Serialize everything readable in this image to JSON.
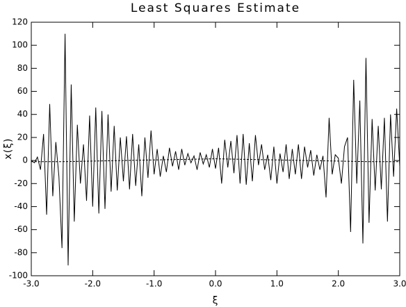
{
  "chart_data": {
    "type": "line",
    "title": "Least Squares Estimate",
    "xlabel": "ξ",
    "ylabel": "x(ξ)",
    "xlim": [
      -3,
      3
    ],
    "ylim": [
      -100,
      120
    ],
    "xticks": [
      {
        "value": -3,
        "label": "-3.0"
      },
      {
        "value": -2,
        "label": "-2.0"
      },
      {
        "value": -1,
        "label": "-1.0"
      },
      {
        "value": 0,
        "label": "0.0"
      },
      {
        "value": 1,
        "label": "1.0"
      },
      {
        "value": 2,
        "label": "2.0"
      },
      {
        "value": 3,
        "label": "3.0"
      }
    ],
    "yticks": [
      -100,
      -80,
      -60,
      -40,
      -20,
      0,
      20,
      40,
      60,
      80,
      100,
      120
    ],
    "series": [
      {
        "color": "#000000",
        "dashed": false,
        "x": [
          -3.0,
          -2.95,
          -2.9,
          -2.85,
          -2.8,
          -2.75,
          -2.7,
          -2.65,
          -2.6,
          -2.55,
          -2.5,
          -2.45,
          -2.4,
          -2.35,
          -2.3,
          -2.25,
          -2.2,
          -2.15,
          -2.1,
          -2.05,
          -2.0,
          -1.95,
          -1.9,
          -1.85,
          -1.8,
          -1.75,
          -1.7,
          -1.65,
          -1.6,
          -1.55,
          -1.5,
          -1.45,
          -1.4,
          -1.35,
          -1.3,
          -1.25,
          -1.2,
          -1.15,
          -1.1,
          -1.05,
          -1.0,
          -0.95,
          -0.9,
          -0.85,
          -0.8,
          -0.75,
          -0.7,
          -0.65,
          -0.6,
          -0.55,
          -0.5,
          -0.45,
          -0.4,
          -0.35,
          -0.3,
          -0.25,
          -0.2,
          -0.15,
          -0.1,
          -0.05,
          0.0,
          0.05,
          0.1,
          0.15,
          0.2,
          0.25,
          0.3,
          0.35,
          0.4,
          0.45,
          0.5,
          0.55,
          0.6,
          0.65,
          0.7,
          0.75,
          0.8,
          0.85,
          0.9,
          0.95,
          1.0,
          1.05,
          1.1,
          1.15,
          1.2,
          1.25,
          1.3,
          1.35,
          1.4,
          1.45,
          1.5,
          1.55,
          1.6,
          1.65,
          1.7,
          1.75,
          1.8,
          1.85,
          1.9,
          1.95,
          2.0,
          2.05,
          2.1,
          2.15,
          2.2,
          2.25,
          2.3,
          2.35,
          2.4,
          2.45,
          2.5,
          2.55,
          2.6,
          2.65,
          2.7,
          2.75,
          2.8,
          2.85,
          2.9,
          2.95,
          3.0
        ],
        "values": [
          0,
          -2,
          3,
          -8,
          23,
          -47,
          49,
          -31,
          16,
          -14,
          -76,
          110,
          -91,
          66,
          -53,
          31,
          -20,
          14,
          -35,
          39,
          -40,
          46,
          -46,
          43,
          -42,
          40,
          -27,
          30,
          -26,
          20,
          -18,
          21,
          -25,
          23,
          -22,
          14,
          -31,
          20,
          -15,
          26,
          -12,
          10,
          -14,
          4,
          -10,
          11,
          -5,
          8,
          -8,
          10,
          -4,
          6,
          -2,
          4,
          -8,
          7,
          -3,
          5,
          -6,
          10,
          -7,
          11,
          -20,
          18,
          -6,
          17,
          -11,
          22,
          -20,
          23,
          -21,
          15,
          -18,
          22,
          -4,
          14,
          -8,
          5,
          -17,
          12,
          -20,
          6,
          -10,
          14,
          -16,
          10,
          -12,
          14,
          -16,
          12,
          -6,
          9,
          -13,
          5,
          -8,
          4,
          -32,
          37,
          -12,
          5,
          2,
          -20,
          12,
          20,
          -62,
          70,
          -20,
          52,
          -72,
          89,
          -54,
          36,
          -26,
          30,
          -25,
          37,
          -53,
          40,
          -14,
          45,
          -5
        ]
      },
      {
        "color": "#000000",
        "dashed": true,
        "x": [
          -3.0,
          -2.5,
          -2.0,
          -1.5,
          -1.0,
          -0.5,
          0.0,
          0.5,
          1.0,
          1.5,
          2.0,
          2.5,
          3.0
        ],
        "values": [
          -1,
          -1,
          -0.5,
          0,
          0.5,
          1,
          1.5,
          1,
          0.5,
          0,
          -0.5,
          -1,
          -1
        ]
      }
    ]
  }
}
